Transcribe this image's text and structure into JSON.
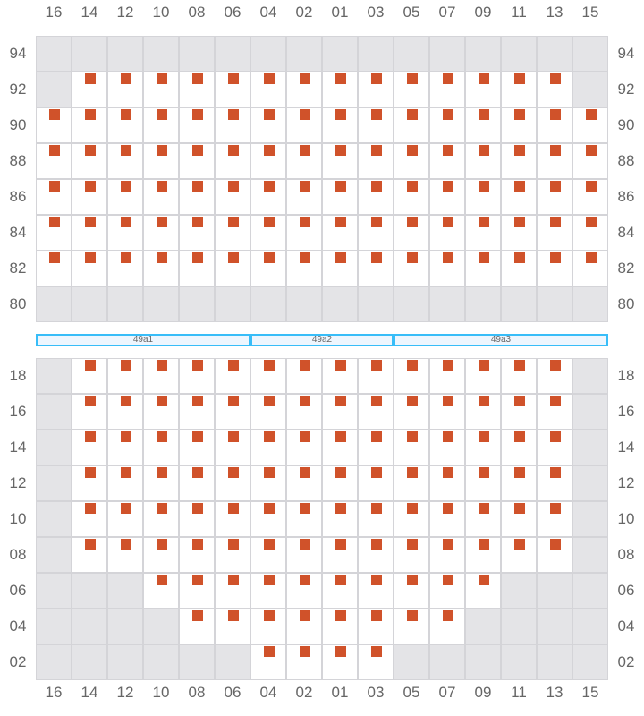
{
  "columns": [
    "16",
    "14",
    "12",
    "10",
    "08",
    "06",
    "04",
    "02",
    "01",
    "03",
    "05",
    "07",
    "09",
    "11",
    "13",
    "15"
  ],
  "colors": {
    "seat": "#d0522a",
    "blocked": "#e4e4e7",
    "grid": "#d4d4d8",
    "section_border": "#38bdf8"
  },
  "top_section": [
    {
      "row": "94",
      "seats": []
    },
    {
      "row": "92",
      "seats": [
        "14",
        "12",
        "10",
        "08",
        "06",
        "04",
        "02",
        "01",
        "03",
        "05",
        "07",
        "09",
        "11",
        "13"
      ]
    },
    {
      "row": "90",
      "seats": [
        "16",
        "14",
        "12",
        "10",
        "08",
        "06",
        "04",
        "02",
        "01",
        "03",
        "05",
        "07",
        "09",
        "11",
        "13",
        "15"
      ]
    },
    {
      "row": "88",
      "seats": [
        "16",
        "14",
        "12",
        "10",
        "08",
        "06",
        "04",
        "02",
        "01",
        "03",
        "05",
        "07",
        "09",
        "11",
        "13",
        "15"
      ]
    },
    {
      "row": "86",
      "seats": [
        "16",
        "14",
        "12",
        "10",
        "08",
        "06",
        "04",
        "02",
        "01",
        "03",
        "05",
        "07",
        "09",
        "11",
        "13",
        "15"
      ]
    },
    {
      "row": "84",
      "seats": [
        "16",
        "14",
        "12",
        "10",
        "08",
        "06",
        "04",
        "02",
        "01",
        "03",
        "05",
        "07",
        "09",
        "11",
        "13",
        "15"
      ]
    },
    {
      "row": "82",
      "seats": [
        "16",
        "14",
        "12",
        "10",
        "08",
        "06",
        "04",
        "02",
        "01",
        "03",
        "05",
        "07",
        "09",
        "11",
        "13",
        "15"
      ]
    },
    {
      "row": "80",
      "seats": []
    }
  ],
  "sections": [
    {
      "label": "49a1",
      "from": "16",
      "to": "06"
    },
    {
      "label": "49a2",
      "from": "04",
      "to": "03"
    },
    {
      "label": "49a3",
      "from": "05",
      "to": "15"
    }
  ],
  "bottom_section": [
    {
      "row": "18",
      "seats": [
        "14",
        "12",
        "10",
        "08",
        "06",
        "04",
        "02",
        "01",
        "03",
        "05",
        "07",
        "09",
        "11",
        "13"
      ]
    },
    {
      "row": "16",
      "seats": [
        "14",
        "12",
        "10",
        "08",
        "06",
        "04",
        "02",
        "01",
        "03",
        "05",
        "07",
        "09",
        "11",
        "13"
      ]
    },
    {
      "row": "14",
      "seats": [
        "14",
        "12",
        "10",
        "08",
        "06",
        "04",
        "02",
        "01",
        "03",
        "05",
        "07",
        "09",
        "11",
        "13"
      ]
    },
    {
      "row": "12",
      "seats": [
        "14",
        "12",
        "10",
        "08",
        "06",
        "04",
        "02",
        "01",
        "03",
        "05",
        "07",
        "09",
        "11",
        "13"
      ]
    },
    {
      "row": "10",
      "seats": [
        "14",
        "12",
        "10",
        "08",
        "06",
        "04",
        "02",
        "01",
        "03",
        "05",
        "07",
        "09",
        "11",
        "13"
      ]
    },
    {
      "row": "08",
      "seats": [
        "14",
        "12",
        "10",
        "08",
        "06",
        "04",
        "02",
        "01",
        "03",
        "05",
        "07",
        "09",
        "11",
        "13"
      ]
    },
    {
      "row": "06",
      "seats": [
        "10",
        "08",
        "06",
        "04",
        "02",
        "01",
        "03",
        "05",
        "07",
        "09"
      ]
    },
    {
      "row": "04",
      "seats": [
        "08",
        "06",
        "04",
        "02",
        "01",
        "03",
        "05",
        "07"
      ]
    },
    {
      "row": "02",
      "seats": [
        "04",
        "02",
        "01",
        "03"
      ]
    }
  ]
}
